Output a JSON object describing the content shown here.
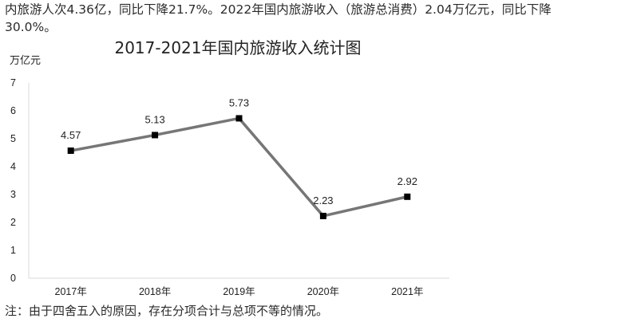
{
  "intro": {
    "line1": "内旅游人次4.36亿，同比下降21.7%。2022年国内旅游收入（旅游总消费）2.04万亿元，同比下降",
    "line2": "30.0%。"
  },
  "footnote": "注：由于四舍五入的原因，存在分项合计与总项不等的情况。",
  "colors": {
    "line": "#767676",
    "marker": "#000000",
    "axis": "#d9d9d9"
  },
  "chart_data": {
    "type": "line",
    "title": "2017-2021年国内旅游收入统计图",
    "ylabel": "万亿元",
    "xlabel": "",
    "categories": [
      "2017年",
      "2018年",
      "2019年",
      "2020年",
      "2021年"
    ],
    "values": [
      4.57,
      5.13,
      5.73,
      2.23,
      2.92
    ],
    "data_labels": [
      "4.57",
      "5.13",
      "5.73",
      "2.23",
      "2.92"
    ],
    "ylim": [
      0,
      7
    ],
    "yticks": [
      0,
      1,
      2,
      3,
      4,
      5,
      6,
      7
    ],
    "grid": false,
    "legend": "none",
    "marker": "square"
  }
}
